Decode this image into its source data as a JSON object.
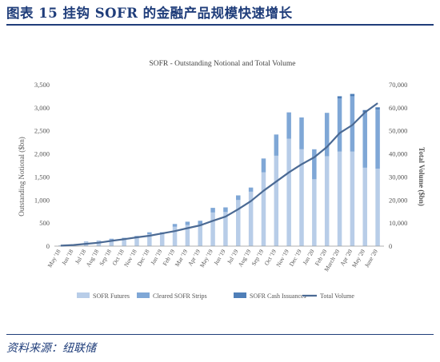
{
  "figure": {
    "title": "图表 15   挂钩 SOFR 的金融产品规模快速增长",
    "source": "资料来源：纽联储"
  },
  "colors": {
    "futures": "#b8cde8",
    "strips": "#7fa7d6",
    "cash": "#4f7fb8",
    "total_line": "#4b6a94",
    "axis_text": "#555555",
    "title_text": "#1f3d7a"
  },
  "chart_data": {
    "type": "bar",
    "title": "SOFR - Outstanding Notional and Total Volume",
    "ylabel": "Outstanding Notional ($bn)",
    "y2label": "Total Volume ($bn)",
    "ylim": [
      0,
      3500
    ],
    "y2lim": [
      0,
      70000
    ],
    "yticks": [
      "0",
      "500",
      "1,000",
      "1,500",
      "2,000",
      "2,500",
      "3,000",
      "3,500"
    ],
    "y2ticks": [
      "0",
      "10,000",
      "20,000",
      "30,000",
      "40,000",
      "50,000",
      "60,000",
      "70,000"
    ],
    "grid": false,
    "legend": "bottom",
    "categories": [
      "May '18",
      "Jun '18",
      "Jul '18",
      "Aug '18",
      "Sep '18",
      "Oct '18",
      "Nov '18",
      "Dec '18",
      "Jan '19",
      "Feb '19",
      "Mar '19",
      "Apr '19",
      "May '19",
      "Jun '19",
      "Jul '19",
      "Aug '19",
      "Sep '19",
      "Oct '19",
      "Nov '19",
      "Dec '19",
      "Jan '20",
      "Feb '20",
      "March '20",
      "Apr '20",
      "May '20",
      "June '20"
    ],
    "series": [
      {
        "name": "SOFR Futures",
        "kind": "bar",
        "values": [
          20,
          40,
          90,
          110,
          140,
          160,
          190,
          260,
          260,
          420,
          460,
          470,
          730,
          740,
          1000,
          1180,
          1600,
          1960,
          2330,
          2100,
          1450,
          1950,
          2050,
          2050,
          1700,
          1680
        ]
      },
      {
        "name": "Cleared SOFR Strips",
        "kind": "bar",
        "values": [
          0,
          0,
          10,
          10,
          20,
          20,
          30,
          40,
          40,
          60,
          70,
          80,
          100,
          100,
          100,
          90,
          300,
          460,
          570,
          690,
          650,
          940,
          1150,
          1200,
          1200,
          1280
        ]
      },
      {
        "name": "SOFR Cash Issuances",
        "kind": "bar",
        "values": [
          0,
          0,
          0,
          0,
          0,
          0,
          0,
          0,
          0,
          0,
          0,
          0,
          0,
          0,
          0,
          0,
          0,
          0,
          0,
          0,
          0,
          0,
          50,
          50,
          50,
          50
        ]
      },
      {
        "name": "Total Volume",
        "kind": "line",
        "axis": "right",
        "values": [
          200,
          500,
          1000,
          1500,
          2300,
          3000,
          3800,
          4500,
          5500,
          6500,
          7800,
          9000,
          11000,
          12800,
          16000,
          19500,
          24000,
          28000,
          32000,
          35500,
          38500,
          43000,
          49000,
          52500,
          58000,
          62000
        ]
      }
    ]
  }
}
